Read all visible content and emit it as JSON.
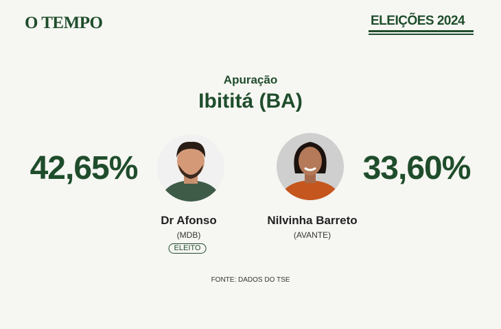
{
  "header": {
    "brand": "O TEMPO",
    "badge": "ELEIÇÕES 2024"
  },
  "title": {
    "label": "Apuração",
    "place": "Ibititá (BA)"
  },
  "candidates": [
    {
      "percent": "42,65%",
      "name": "Dr Afonso",
      "party": "(MDB)",
      "status": "ELEITO"
    },
    {
      "percent": "33,60%",
      "name": "Nilvinha Barreto",
      "party": "(AVANTE)"
    }
  ],
  "source": "FONTE: DADOS DO TSE"
}
